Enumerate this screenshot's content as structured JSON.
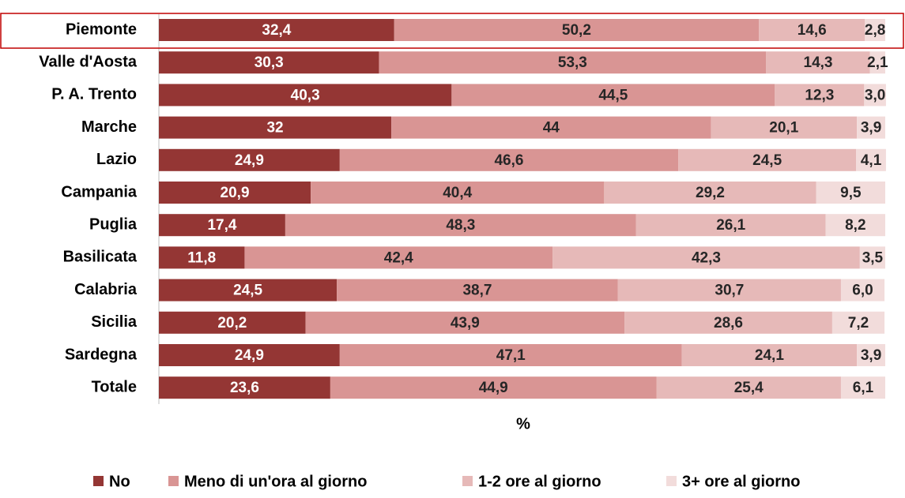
{
  "chart_data": {
    "type": "stacked-bar-horizontal",
    "x_label": "%",
    "xlim": [
      0,
      100
    ],
    "categories": [
      "Piemonte",
      "Valle d'Aosta",
      "P. A. Trento",
      "Marche",
      "Lazio",
      "Campania",
      "Puglia",
      "Basilicata",
      "Calabria",
      "Sicilia",
      "Sardegna",
      "Totale"
    ],
    "series": [
      {
        "name": "No",
        "color": "#943634",
        "values": [
          32.4,
          30.3,
          40.3,
          32,
          24.9,
          20.9,
          17.4,
          11.8,
          24.5,
          20.2,
          24.9,
          23.6
        ],
        "value_labels": [
          "32,4",
          "30,3",
          "40,3",
          "32",
          "24,9",
          "20,9",
          "17,4",
          "11,8",
          "24,5",
          "20,2",
          "24,9",
          "23,6"
        ]
      },
      {
        "name": "Meno di un'ora al giorno",
        "color": "#d99594",
        "values": [
          50.2,
          53.3,
          44.5,
          44,
          46.6,
          40.4,
          48.3,
          42.4,
          38.7,
          43.9,
          47.1,
          44.9
        ],
        "value_labels": [
          "50,2",
          "53,3",
          "44,5",
          "44",
          "46,6",
          "40,4",
          "48,3",
          "42,4",
          "38,7",
          "43,9",
          "47,1",
          "44,9"
        ]
      },
      {
        "name": "1-2 ore al giorno",
        "color": "#e6b9b8",
        "values": [
          14.6,
          14.3,
          12.3,
          20.1,
          24.5,
          29.2,
          26.1,
          42.3,
          30.7,
          28.6,
          24.1,
          25.4
        ],
        "value_labels": [
          "14,6",
          "14,3",
          "12,3",
          "20,1",
          "24,5",
          "29,2",
          "26,1",
          "42,3",
          "30,7",
          "28,6",
          "24,1",
          "25,4"
        ]
      },
      {
        "name": "3+ ore al giorno",
        "color": "#f2dcdb",
        "values": [
          2.8,
          2.1,
          3.0,
          3.9,
          4.1,
          9.5,
          8.2,
          3.5,
          6.0,
          7.2,
          3.9,
          6.1
        ],
        "value_labels": [
          "2,8",
          "2,1",
          "3,0",
          "3,9",
          "4,1",
          "9,5",
          "8,2",
          "3,5",
          "6,0",
          "7,2",
          "3,9",
          "6,1"
        ]
      }
    ]
  }
}
